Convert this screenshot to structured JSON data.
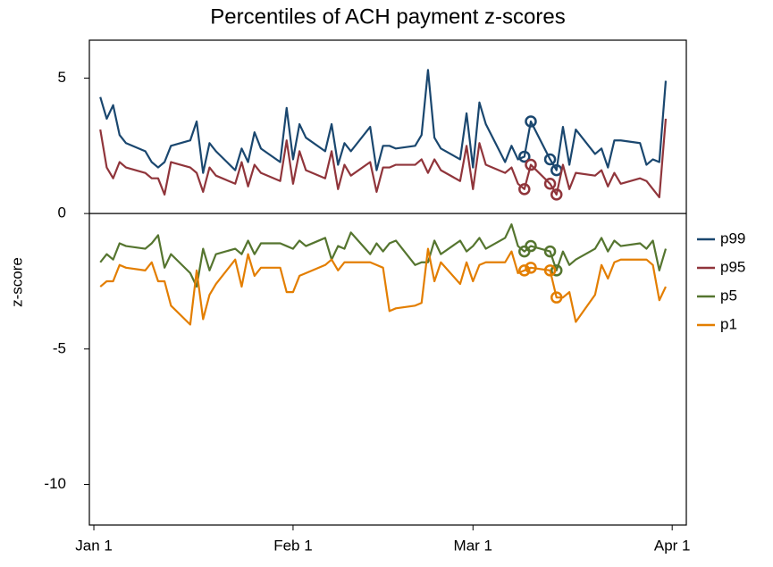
{
  "chart_data": {
    "type": "line",
    "title": "Percentiles of ACH payment z-scores",
    "ylabel": "z-score",
    "x": [
      1,
      2,
      3,
      4,
      5,
      8,
      9,
      10,
      11,
      12,
      15,
      16,
      17,
      18,
      19,
      22,
      23,
      24,
      25,
      26,
      29,
      30,
      31,
      32,
      33,
      36,
      37,
      38,
      39,
      40,
      43,
      44,
      45,
      46,
      47,
      50,
      51,
      52,
      53,
      54,
      57,
      58,
      59,
      60,
      61,
      64,
      65,
      66,
      67,
      68,
      71,
      72,
      73,
      74,
      75,
      78,
      79,
      80,
      81,
      82,
      85,
      86,
      87,
      88,
      89
    ],
    "xlim": [
      -0.7,
      92.2
    ],
    "xticks": [
      {
        "value": 0,
        "label": "Jan 1"
      },
      {
        "value": 31,
        "label": "Feb 1"
      },
      {
        "value": 59,
        "label": "Mar 1"
      },
      {
        "value": 90,
        "label": "Apr 1"
      }
    ],
    "ylim": [
      -11.5,
      6.4
    ],
    "yticks": [
      -10,
      -5,
      0,
      5
    ],
    "yline": 0,
    "marked_x": [
      67,
      68,
      71,
      72
    ],
    "legend": "right",
    "series": [
      {
        "name": "p99",
        "color": "#1a476f",
        "values": [
          4.3,
          3.5,
          4.0,
          2.9,
          2.6,
          2.3,
          1.9,
          1.7,
          1.9,
          2.5,
          2.7,
          3.4,
          1.5,
          2.6,
          2.3,
          1.6,
          2.4,
          1.9,
          3.0,
          2.4,
          1.9,
          3.9,
          2.0,
          3.3,
          2.8,
          2.3,
          3.3,
          1.8,
          2.6,
          2.3,
          3.2,
          1.6,
          2.5,
          2.5,
          2.4,
          2.5,
          2.9,
          5.3,
          2.8,
          2.4,
          2.0,
          3.7,
          1.7,
          4.1,
          3.3,
          1.9,
          2.5,
          2.0,
          2.1,
          3.4,
          2.0,
          1.6,
          3.2,
          1.8,
          3.1,
          2.2,
          2.4,
          1.7,
          2.7,
          2.7,
          2.6,
          1.8,
          2.0,
          1.9,
          4.9
        ]
      },
      {
        "name": "p95",
        "color": "#90353b",
        "values": [
          3.1,
          1.7,
          1.3,
          1.9,
          1.7,
          1.5,
          1.3,
          1.3,
          0.7,
          1.9,
          1.7,
          1.5,
          0.8,
          1.7,
          1.4,
          1.1,
          1.9,
          1.0,
          1.8,
          1.5,
          1.2,
          2.7,
          1.1,
          2.3,
          1.6,
          1.3,
          2.3,
          0.9,
          1.8,
          1.4,
          1.9,
          0.8,
          1.7,
          1.7,
          1.8,
          1.8,
          2.0,
          1.5,
          2.0,
          1.6,
          1.2,
          2.5,
          0.9,
          2.6,
          1.8,
          1.5,
          1.7,
          1.1,
          0.9,
          1.8,
          1.1,
          0.7,
          1.8,
          0.9,
          1.5,
          1.4,
          1.6,
          1.0,
          1.5,
          1.1,
          1.3,
          1.2,
          0.9,
          0.6,
          3.5
        ]
      },
      {
        "name": "p5",
        "color": "#55752f",
        "values": [
          -1.8,
          -1.5,
          -1.7,
          -1.1,
          -1.2,
          -1.3,
          -1.1,
          -0.8,
          -2.0,
          -1.5,
          -2.2,
          -2.7,
          -1.3,
          -2.1,
          -1.5,
          -1.3,
          -1.5,
          -1.0,
          -1.5,
          -1.1,
          -1.1,
          -1.2,
          -1.3,
          -1.0,
          -1.2,
          -0.9,
          -1.7,
          -1.2,
          -1.3,
          -0.7,
          -1.5,
          -1.1,
          -1.4,
          -1.1,
          -1.0,
          -1.9,
          -1.8,
          -1.8,
          -1.0,
          -1.5,
          -1.0,
          -1.4,
          -1.2,
          -0.9,
          -1.3,
          -0.9,
          -0.4,
          -1.2,
          -1.4,
          -1.2,
          -1.4,
          -2.1,
          -1.4,
          -1.9,
          -1.7,
          -1.3,
          -0.9,
          -1.4,
          -1.0,
          -1.2,
          -1.1,
          -1.3,
          -1.0,
          -2.1,
          -1.3
        ]
      },
      {
        "name": "p1",
        "color": "#e37e00",
        "values": [
          -2.7,
          -2.5,
          -2.5,
          -1.9,
          -2.0,
          -2.1,
          -1.8,
          -2.5,
          -2.5,
          -3.4,
          -4.1,
          -2.1,
          -3.9,
          -3.0,
          -2.6,
          -1.7,
          -2.7,
          -1.5,
          -2.3,
          -2.0,
          -2.0,
          -2.9,
          -2.9,
          -2.3,
          -2.2,
          -1.9,
          -1.7,
          -2.1,
          -1.8,
          -1.8,
          -1.8,
          -1.9,
          -2.0,
          -3.6,
          -3.5,
          -3.4,
          -3.3,
          -1.3,
          -2.5,
          -1.8,
          -2.6,
          -1.8,
          -2.5,
          -1.9,
          -1.8,
          -1.8,
          -1.4,
          -2.2,
          -2.1,
          -2.0,
          -2.1,
          -3.1,
          -3.1,
          -2.9,
          -4.0,
          -3.0,
          -1.9,
          -2.4,
          -1.8,
          -1.7,
          -1.7,
          -1.7,
          -1.9,
          -3.2,
          -2.7
        ]
      }
    ]
  }
}
